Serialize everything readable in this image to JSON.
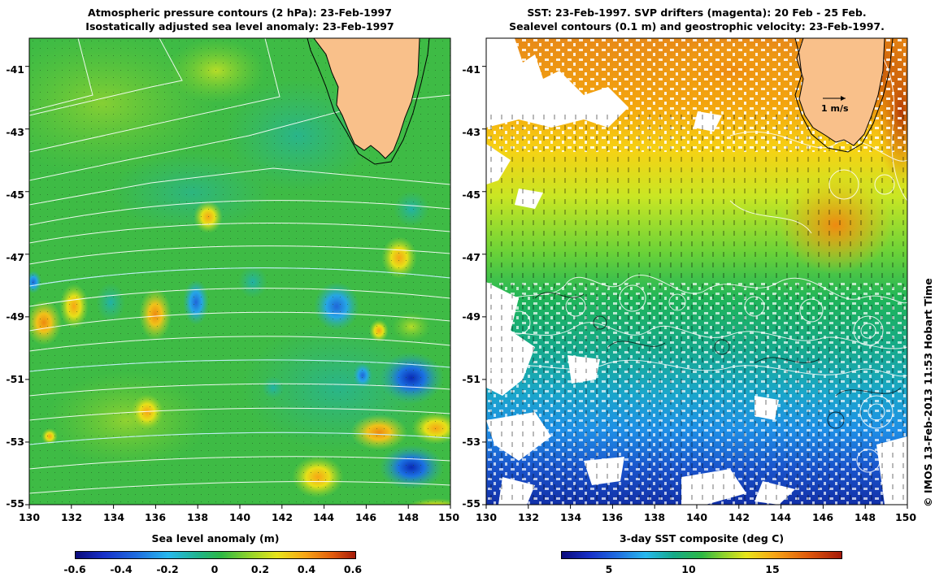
{
  "left_panel": {
    "title_line1": "Atmospheric pressure contours (2 hPa): 23-Feb-1997",
    "title_line2": "Isostatically adjusted sea level anomaly: 23-Feb-1997",
    "colorbar_title": "Sea level anomaly (m)",
    "colorbar_ticks": [
      "-0.6",
      "-0.4",
      "-0.2",
      "0",
      "0.2",
      "0.4",
      "0.6"
    ]
  },
  "right_panel": {
    "title_line1": "SST: 23-Feb-1997. SVP drifters (magenta): 20 Feb - 25 Feb.",
    "title_line2": "Sealevel contours (0.1 m) and geostrophic velocity: 23-Feb-1997.",
    "colorbar_title": "3-day SST composite (deg C)",
    "colorbar_ticks": [
      "5",
      "10",
      "15"
    ],
    "scale_label": "1 m/s"
  },
  "axes": {
    "lat_ticks": [
      "-41",
      "-43",
      "-45",
      "-47",
      "-49",
      "-51",
      "-53",
      "-55"
    ],
    "lon_ticks": [
      "130",
      "132",
      "134",
      "136",
      "138",
      "140",
      "142",
      "144",
      "146",
      "148",
      "150"
    ],
    "lat_range": [
      -55,
      -40.1
    ],
    "lon_range": [
      130,
      150
    ]
  },
  "credit": "© IMOS 13-Feb-2013 11:53 Hobart Time",
  "colors": {
    "land": "#f9c08a",
    "anomaly_base": "#2fb84a",
    "sst_warm": "#e07a0c",
    "contour": "#ffffff"
  }
}
